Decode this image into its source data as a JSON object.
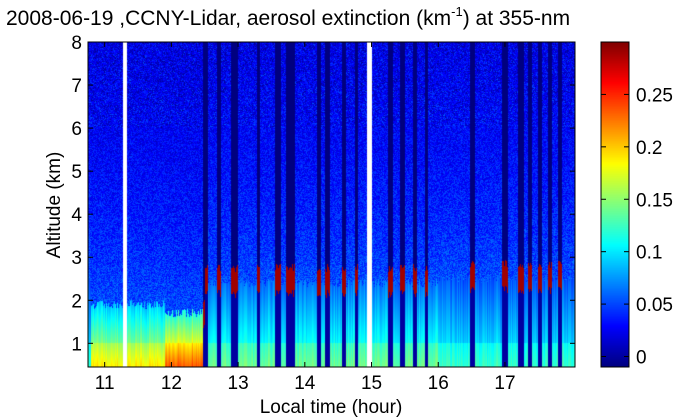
{
  "chart_data": {
    "type": "heatmap",
    "title_main": "2008-06-19 ,CCNY-Lidar, aerosol extinction (km",
    "title_sup": "-1",
    "title_tail": ") at 355-nm",
    "xlabel": "Local time (hour)",
    "ylabel": "Altitude (km)",
    "xlim": [
      10.75,
      18.05
    ],
    "ylim": [
      0.45,
      8
    ],
    "xticks": [
      11,
      12,
      13,
      14,
      15,
      16,
      17
    ],
    "yticks": [
      1,
      2,
      3,
      4,
      5,
      6,
      7,
      8
    ],
    "colorbar": {
      "range": [
        -0.01,
        0.3
      ],
      "ticks": [
        0,
        0.05,
        0.1,
        0.15,
        0.2,
        0.25
      ],
      "tick_labels": [
        "0",
        "0.05",
        "0.1",
        "0.15",
        "0.2",
        "0.25"
      ],
      "colormap": "jet"
    },
    "data_gaps_hours": [
      [
        11.27,
        11.33
      ],
      [
        14.93,
        15.0
      ]
    ],
    "cloud_columns_hours": [
      [
        12.48,
        12.55
      ],
      [
        12.68,
        12.75
      ],
      [
        12.9,
        13.0
      ],
      [
        13.28,
        13.33
      ],
      [
        13.55,
        13.65
      ],
      [
        13.72,
        13.85
      ],
      [
        14.18,
        14.25
      ],
      [
        14.3,
        14.38
      ],
      [
        14.55,
        14.62
      ],
      [
        14.75,
        14.8
      ],
      [
        15.25,
        15.32
      ],
      [
        15.42,
        15.5
      ],
      [
        15.62,
        15.68
      ],
      [
        15.8,
        15.85
      ],
      [
        16.48,
        16.55
      ],
      [
        16.95,
        17.05
      ],
      [
        17.2,
        17.28
      ],
      [
        17.35,
        17.4
      ],
      [
        17.5,
        17.55
      ],
      [
        17.65,
        17.7
      ],
      [
        17.8,
        17.85
      ]
    ],
    "profile_regimes": [
      {
        "time_range": [
          10.8,
          11.9
        ],
        "boundary_layer_top_km": 1.9,
        "surface_extinction": 0.2
      },
      {
        "time_range": [
          11.9,
          12.5
        ],
        "boundary_layer_top_km": 1.7,
        "surface_extinction": 0.26
      },
      {
        "time_range": [
          12.5,
          16.0
        ],
        "boundary_layer_top_km": 2.4,
        "surface_extinction": 0.14
      },
      {
        "time_range": [
          16.0,
          18.0
        ],
        "boundary_layer_top_km": 2.5,
        "surface_extinction": 0.12
      }
    ],
    "upper_layer_extinction": 0.04,
    "grid": false
  }
}
